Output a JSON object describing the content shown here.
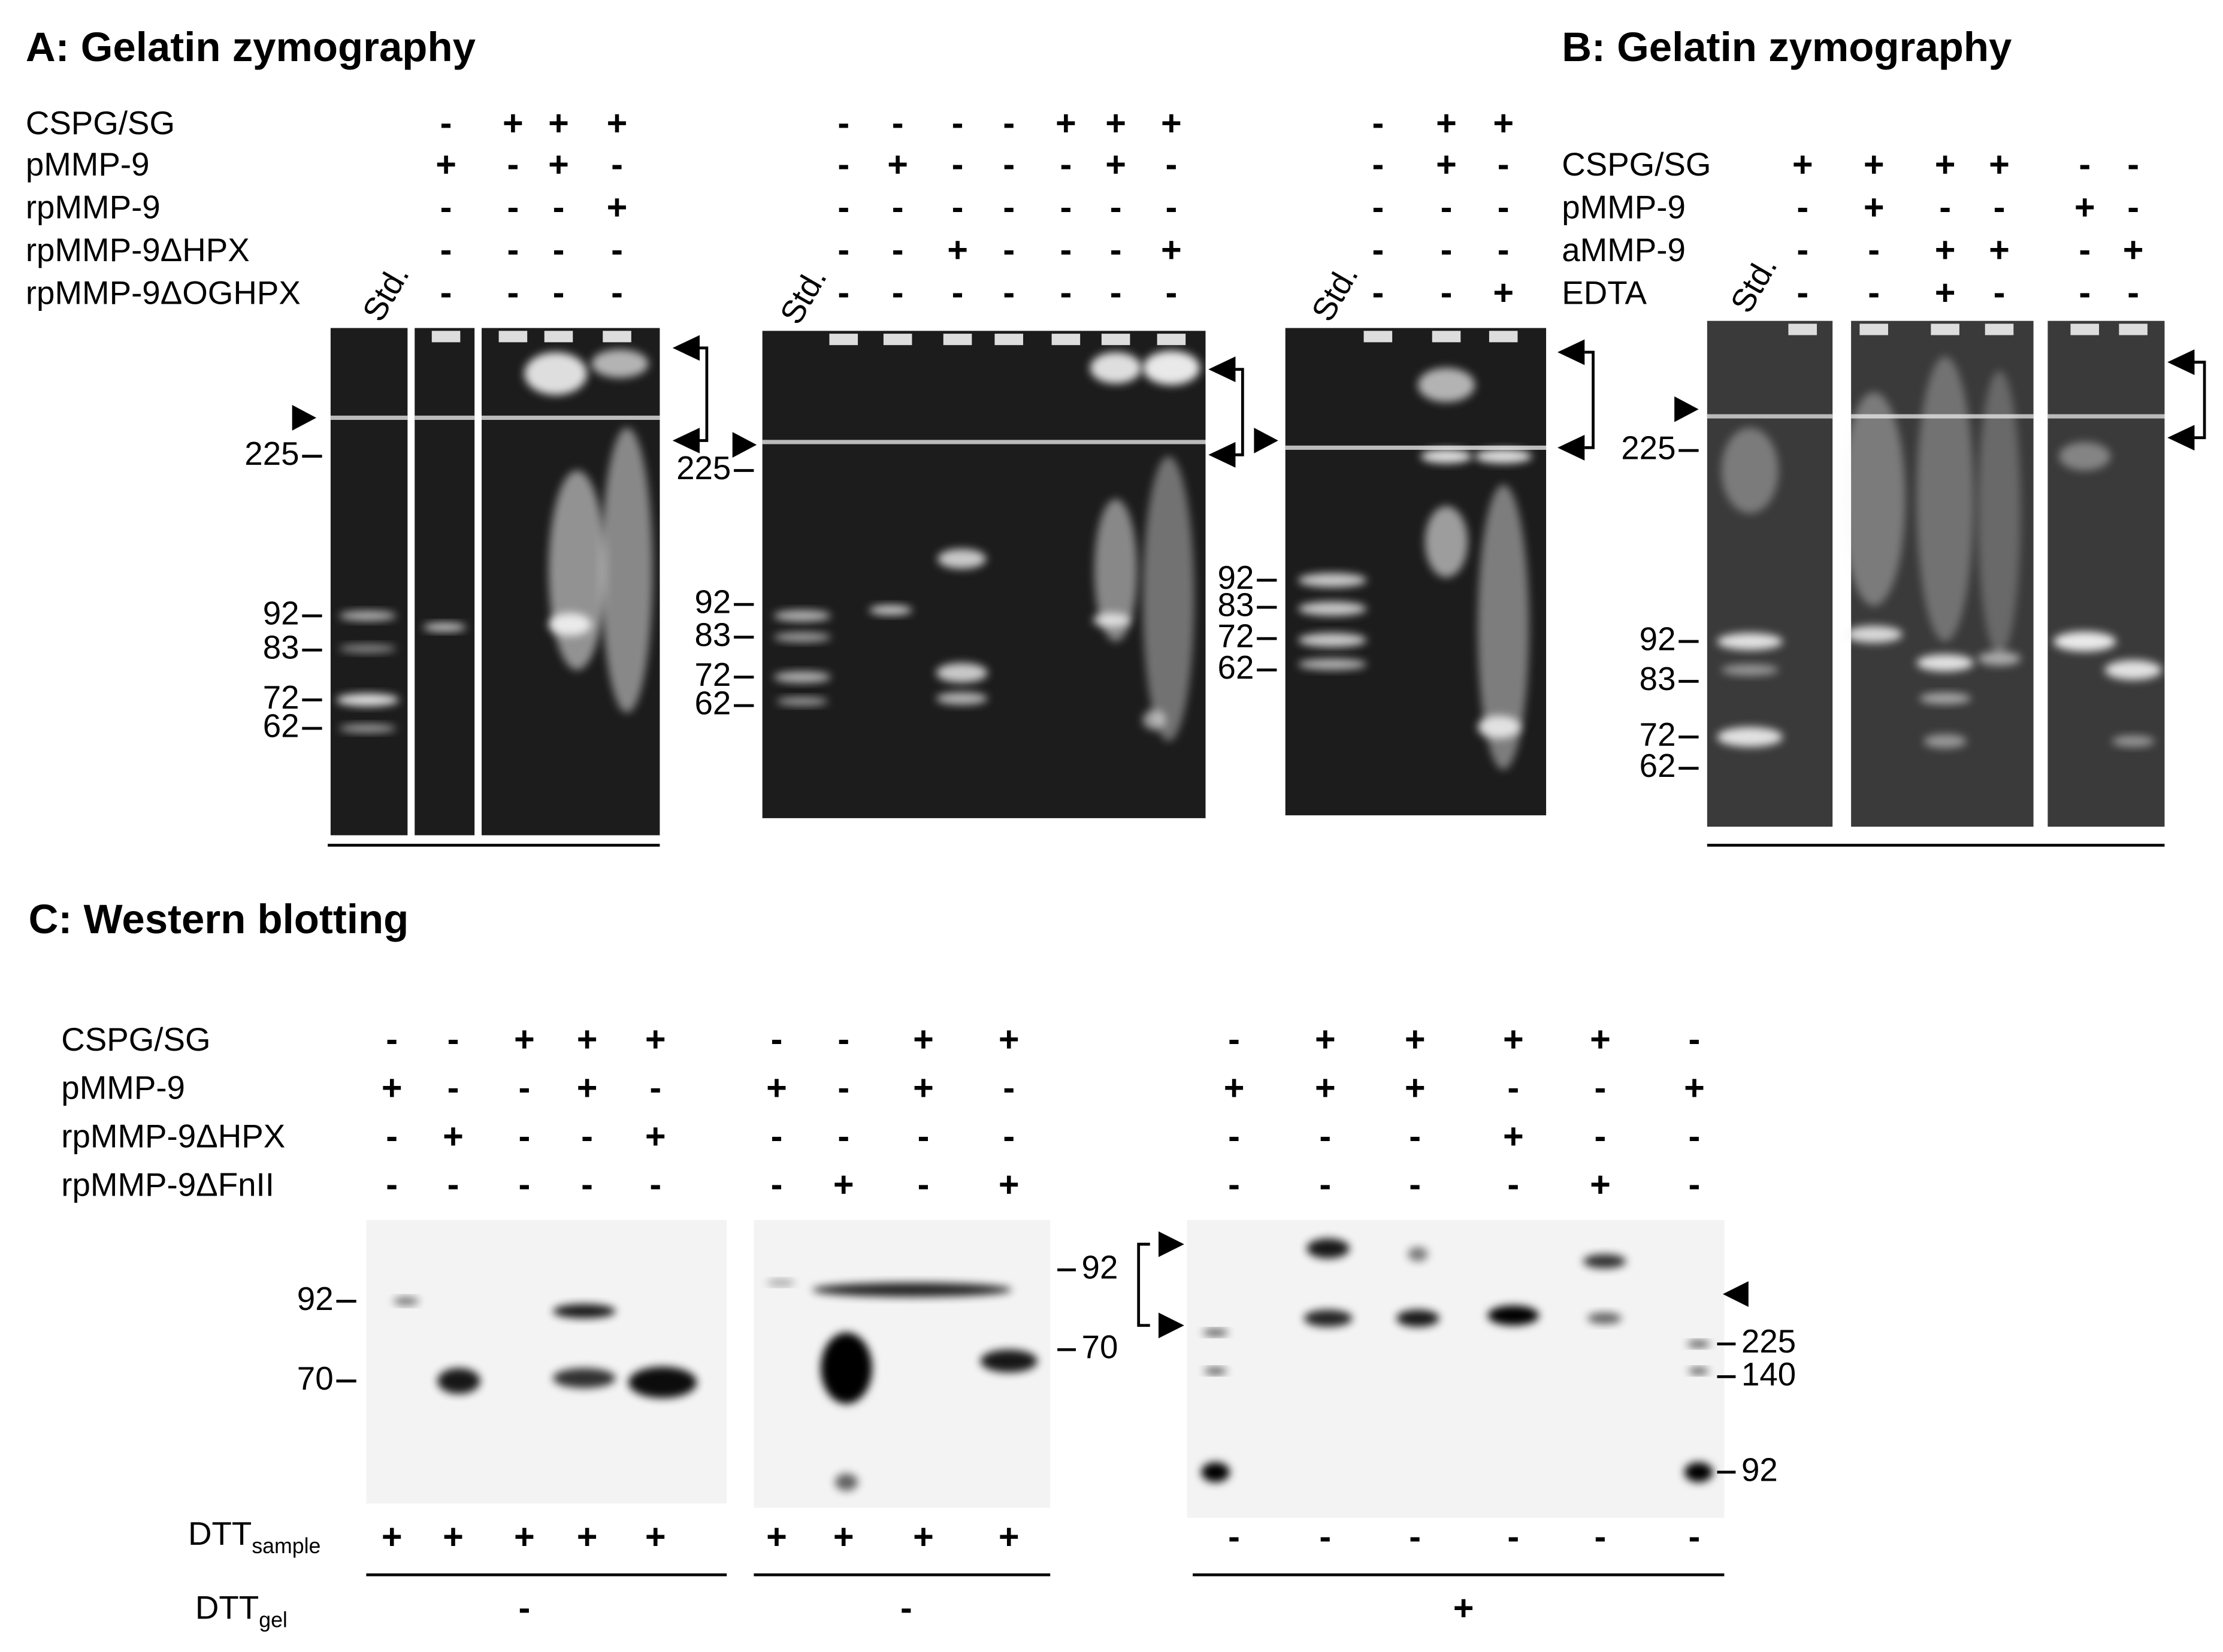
{
  "panel_a": {
    "title": "A: Gelatin zymography",
    "row_labels": [
      "CSPG/SG",
      "pMMP-9",
      "rpMMP-9",
      "rpMMP-9ΔHPX",
      "rpMMP-9ΔOGHPX"
    ],
    "gels": [
      {
        "std": "Std.",
        "signs": [
          [
            "-",
            "+",
            "+",
            "+"
          ],
          [
            "+",
            "-",
            "+",
            "-"
          ],
          [
            "-",
            "-",
            "-",
            "+"
          ],
          [
            "-",
            "-",
            "-",
            "-"
          ],
          [
            "-",
            "-",
            "-",
            "-"
          ]
        ],
        "markers": [
          "225",
          "92",
          "83",
          "72",
          "62"
        ]
      },
      {
        "std": "Std.",
        "signs": [
          [
            "-",
            "-",
            "-",
            "-",
            "+",
            "+",
            "+"
          ],
          [
            "-",
            "+",
            "-",
            "-",
            "-",
            "+",
            "-"
          ],
          [
            "-",
            "-",
            "-",
            "-",
            "-",
            "-",
            "-"
          ],
          [
            "-",
            "-",
            "+",
            "-",
            "-",
            "-",
            "+"
          ],
          [
            "-",
            "-",
            "-",
            "-",
            "-",
            "-",
            "-"
          ]
        ],
        "markers": [
          "225",
          "92",
          "83",
          "72",
          "62"
        ]
      },
      {
        "std": "Std.",
        "signs": [
          [
            "-",
            "+",
            "+"
          ],
          [
            "-",
            "+",
            "-"
          ],
          [
            "-",
            "-",
            "-"
          ],
          [
            "-",
            "-",
            "-"
          ],
          [
            "-",
            "-",
            "+"
          ]
        ],
        "markers": [
          "92",
          "83",
          "72",
          "62"
        ]
      }
    ]
  },
  "panel_b": {
    "title": "B: Gelatin zymography",
    "row_labels": [
      "CSPG/SG",
      "pMMP-9",
      "aMMP-9",
      "EDTA"
    ],
    "gels": [
      {
        "std": "Std.",
        "signs": [
          [
            "+",
            "+",
            "+",
            "+",
            "-",
            "-"
          ],
          [
            "-",
            "+",
            "-",
            "-",
            "+",
            "-"
          ],
          [
            "-",
            "-",
            "+",
            "+",
            "-",
            "+"
          ],
          [
            "-",
            "-",
            "+",
            "-",
            "-",
            "-"
          ]
        ],
        "markers": [
          "225",
          "92",
          "83",
          "72",
          "62"
        ]
      }
    ]
  },
  "panel_c": {
    "title": "C: Western blotting",
    "row_labels": [
      "CSPG/SG",
      "pMMP-9",
      "rpMMP-9ΔHPX",
      "rpMMP-9ΔFnII"
    ],
    "dtt_sample": {
      "label": "DTT",
      "subscript": "sample"
    },
    "dtt_gel": {
      "label": "DTT",
      "subscript": "gel"
    },
    "blots": [
      {
        "signs": [
          [
            "-",
            "-",
            "+",
            "+",
            "+"
          ],
          [
            "+",
            "-",
            "-",
            "+",
            "-"
          ],
          [
            "-",
            "+",
            "-",
            "-",
            "+"
          ],
          [
            "-",
            "-",
            "-",
            "-",
            "-"
          ]
        ],
        "dtt_sample": [
          "+",
          "+",
          "+",
          "+",
          "+"
        ],
        "dtt_gel": "-",
        "markers": [
          "92",
          "70"
        ]
      },
      {
        "signs": [
          [
            "-",
            "-",
            "+",
            "+"
          ],
          [
            "+",
            "-",
            "+",
            "-"
          ],
          [
            "-",
            "-",
            "-",
            "-"
          ],
          [
            "-",
            "+",
            "-",
            "+"
          ]
        ],
        "dtt_sample": [
          "+",
          "+",
          "+",
          "+"
        ],
        "dtt_gel": "-",
        "markers": [
          "92",
          "70"
        ]
      },
      {
        "signs": [
          [
            "-",
            "+",
            "+",
            "+",
            "+",
            "-"
          ],
          [
            "+",
            "+",
            "+",
            "-",
            "-",
            "+"
          ],
          [
            "-",
            "-",
            "-",
            "+",
            "-",
            "-"
          ],
          [
            "-",
            "-",
            "-",
            "-",
            "+",
            "-"
          ]
        ],
        "dtt_sample": [
          "-",
          "-",
          "-",
          "-",
          "-",
          "-"
        ],
        "dtt_gel": "+",
        "markers": [
          "225",
          "140",
          "92"
        ]
      }
    ]
  }
}
